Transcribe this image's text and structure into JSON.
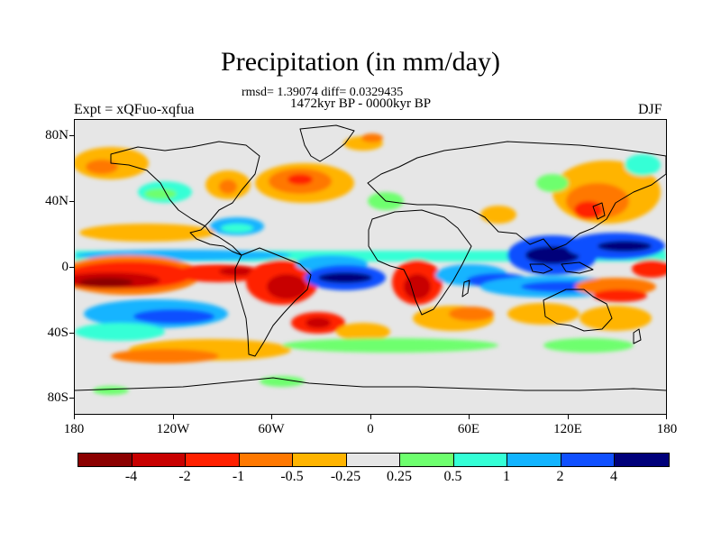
{
  "title": "Precipitation (in mm/day)",
  "stats_line": "rmsd= 1.39074  diff= 0.0329435",
  "period_line": "1472kyr BP - 0000kyr BP",
  "expt_label": "Expt = xQFuo-xqfua",
  "season_label": "DJF",
  "lat_ticks": [
    "80N",
    "40N",
    "0",
    "40S",
    "80S"
  ],
  "lon_ticks": [
    "180",
    "120W",
    "60W",
    "0",
    "60E",
    "120E",
    "180"
  ],
  "colorbar": {
    "colors": [
      "#8b0000",
      "#c80000",
      "#ff2000",
      "#ff7800",
      "#ffb400",
      "#e6e6e6",
      "#6eff6e",
      "#34ffd6",
      "#12b4ff",
      "#1050ff",
      "#00007a"
    ],
    "labels": [
      "-4",
      "-2",
      "-1",
      "-0.5",
      "-0.25",
      "0.25",
      "0.5",
      "1",
      "2",
      "4"
    ]
  }
}
